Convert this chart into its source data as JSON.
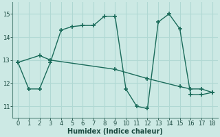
{
  "xlabel": "Humidex (Indice chaleur)",
  "line1_x": [
    0,
    1,
    2,
    3,
    4,
    5,
    6,
    7,
    8,
    9,
    10,
    11,
    12,
    13,
    14,
    15,
    16,
    17,
    18
  ],
  "line1_y": [
    12.9,
    11.75,
    11.75,
    12.9,
    14.3,
    14.45,
    14.5,
    14.5,
    14.9,
    14.9,
    11.75,
    11.0,
    10.9,
    14.65,
    15.0,
    14.35,
    11.5,
    11.5,
    11.6
  ],
  "line2_x": [
    0,
    2,
    3,
    9,
    12,
    15,
    16,
    17,
    18
  ],
  "line2_y": [
    12.9,
    13.2,
    13.0,
    12.6,
    12.2,
    11.85,
    11.75,
    11.75,
    11.6
  ],
  "line_color": "#1a6b5a",
  "marker": "+",
  "marker_size": 5,
  "marker_lw": 1.2,
  "line_width": 1.0,
  "bg_color": "#cce9e4",
  "grid_color": "#b0d8d3",
  "ylim": [
    10.5,
    15.5
  ],
  "xlim": [
    -0.5,
    18.5
  ],
  "yticks": [
    11,
    12,
    13,
    14,
    15
  ],
  "xticks": [
    0,
    1,
    2,
    3,
    4,
    5,
    6,
    7,
    8,
    9,
    10,
    11,
    12,
    13,
    14,
    15,
    16,
    17,
    18
  ]
}
